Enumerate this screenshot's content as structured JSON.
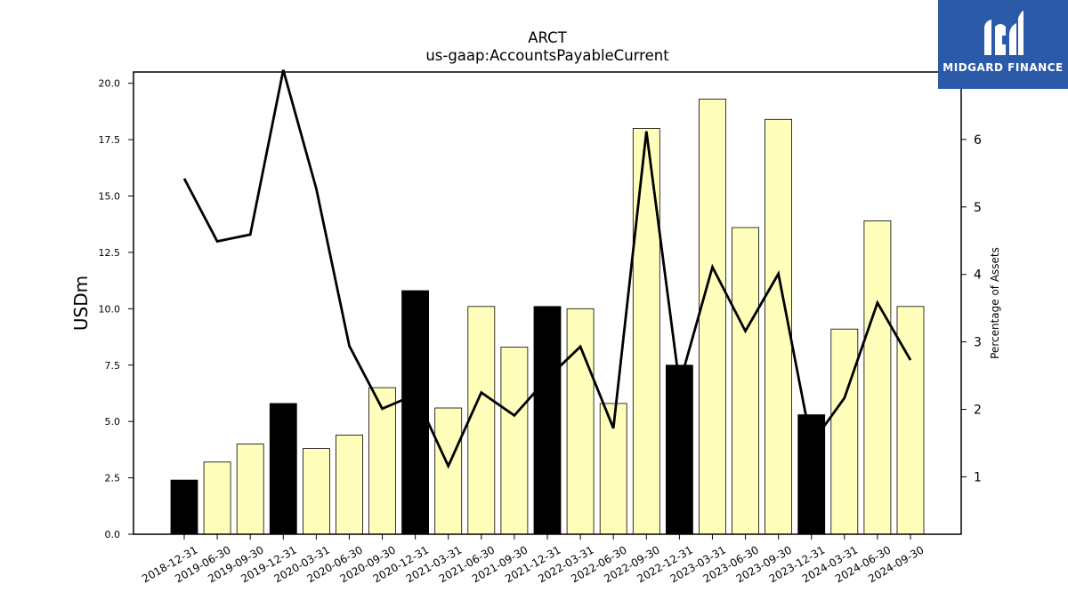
{
  "chart_data": {
    "type": "bar",
    "title": "ARCT",
    "subtitle": "us-gaap:AccountsPayableCurrent",
    "ylabel": "USDm",
    "ylabel_right": "Percentage of Assets",
    "ylim": [
      0,
      20.5
    ],
    "ylim_right": [
      0.15,
      7.0
    ],
    "yticks": [
      "0.0",
      "2.5",
      "5.0",
      "7.5",
      "10.0",
      "12.5",
      "15.0",
      "17.5",
      "20.0"
    ],
    "yticks_right": [
      "1",
      "2",
      "3",
      "4",
      "5",
      "6"
    ],
    "categories": [
      "2018-12-31",
      "2019-06-30",
      "2019-09-30",
      "2019-12-31",
      "2020-03-31",
      "2020-06-30",
      "2020-09-30",
      "2020-12-31",
      "2021-03-31",
      "2021-06-30",
      "2021-09-30",
      "2021-12-31",
      "2022-03-31",
      "2022-06-30",
      "2022-09-30",
      "2022-12-31",
      "2023-03-31",
      "2023-06-30",
      "2023-09-30",
      "2023-12-31",
      "2024-03-31",
      "2024-06-30",
      "2024-09-30"
    ],
    "series": [
      {
        "kind": "bar",
        "values": [
          2.4,
          3.2,
          4.0,
          5.8,
          3.8,
          4.4,
          6.5,
          10.8,
          5.6,
          10.1,
          8.3,
          10.1,
          10.0,
          5.8,
          18.0,
          7.5,
          19.3,
          13.6,
          18.4,
          5.3,
          9.1,
          13.9,
          10.1
        ],
        "colors": [
          "#000000",
          "#ffffbb",
          "#ffffbb",
          "#000000",
          "#ffffbb",
          "#ffffbb",
          "#ffffbb",
          "#000000",
          "#ffffbb",
          "#ffffbb",
          "#ffffbb",
          "#000000",
          "#ffffbb",
          "#ffffbb",
          "#ffffbb",
          "#000000",
          "#ffffbb",
          "#ffffbb",
          "#ffffbb",
          "#000000",
          "#ffffbb",
          "#ffffbb",
          "#ffffbb"
        ]
      },
      {
        "kind": "line",
        "axis": "right",
        "values": [
          5.42,
          4.49,
          4.59,
          7.03,
          5.27,
          2.94,
          2.01,
          2.22,
          1.16,
          2.25,
          1.91,
          2.46,
          2.93,
          1.72,
          6.12,
          2.37,
          4.11,
          3.16,
          4.01,
          1.49,
          2.17,
          3.58,
          2.73
        ],
        "color": "#000000"
      }
    ],
    "grid": false
  },
  "logo": {
    "text": "MIDGARD FINANCE",
    "background": "#2b5aa8"
  }
}
